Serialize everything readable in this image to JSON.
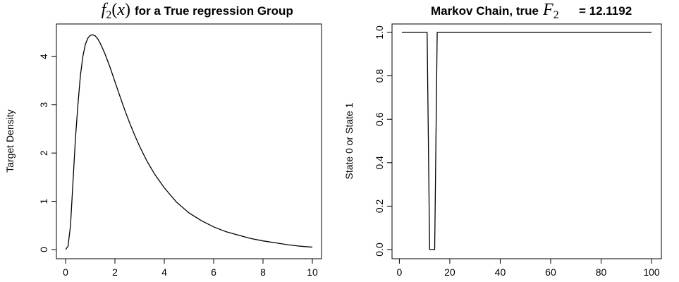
{
  "chart_data": [
    {
      "type": "line",
      "title": {
        "math_base": "f",
        "math_sub": "2",
        "math_arg": "x",
        "text": "for a True regression Group"
      },
      "xlabel": "",
      "ylabel": "Target Density",
      "xlim": [
        0,
        10
      ],
      "ylim": [
        0,
        4.5
      ],
      "xticks": [
        0,
        2,
        4,
        6,
        8,
        10
      ],
      "yticks": [
        0,
        1,
        2,
        3,
        4
      ],
      "series": [
        {
          "x": [
            0,
            0.1,
            0.2,
            0.3,
            0.4,
            0.5,
            0.6,
            0.7,
            0.8,
            0.9,
            1.0,
            1.1,
            1.2,
            1.3,
            1.4,
            1.5,
            1.6,
            1.8,
            2.0,
            2.2,
            2.4,
            2.6,
            2.8,
            3.0,
            3.3,
            3.6,
            4.0,
            4.5,
            5.0,
            5.5,
            6.0,
            6.5,
            7.0,
            7.5,
            8.0,
            8.5,
            9.0,
            9.5,
            10.0
          ],
          "values": [
            0.0,
            0.07,
            0.5,
            1.4,
            2.3,
            3.0,
            3.6,
            4.0,
            4.25,
            4.38,
            4.44,
            4.45,
            4.43,
            4.37,
            4.28,
            4.17,
            4.05,
            3.78,
            3.48,
            3.18,
            2.89,
            2.62,
            2.37,
            2.14,
            1.83,
            1.57,
            1.28,
            0.98,
            0.76,
            0.6,
            0.47,
            0.37,
            0.3,
            0.23,
            0.18,
            0.14,
            0.1,
            0.07,
            0.05
          ]
        }
      ]
    },
    {
      "type": "line",
      "title": {
        "prefix": "Markov Chain, true",
        "math_base": "F",
        "math_sub": "2",
        "suffix": "= 12.1192"
      },
      "xlabel": "",
      "ylabel": "State 0 or State 1",
      "xlim": [
        1,
        100
      ],
      "ylim": [
        0,
        1
      ],
      "xticks": [
        0,
        20,
        40,
        60,
        80,
        100
      ],
      "yticks": [
        "0.0",
        "0.2",
        "0.4",
        "0.6",
        "0.8",
        "1.0"
      ],
      "series": [
        {
          "x": [
            1,
            2,
            3,
            4,
            5,
            6,
            7,
            8,
            9,
            10,
            11,
            12,
            13,
            14,
            15,
            16,
            17,
            18,
            19,
            20,
            21,
            22,
            23,
            24,
            25,
            26,
            27,
            28,
            29,
            30,
            31,
            32,
            33,
            34,
            35,
            36,
            37,
            38,
            39,
            40,
            41,
            42,
            43,
            44,
            45,
            46,
            47,
            48,
            49,
            50,
            51,
            52,
            53,
            54,
            55,
            56,
            57,
            58,
            59,
            60,
            61,
            62,
            63,
            64,
            65,
            66,
            67,
            68,
            69,
            70,
            71,
            72,
            73,
            74,
            75,
            76,
            77,
            78,
            79,
            80,
            81,
            82,
            83,
            84,
            85,
            86,
            87,
            88,
            89,
            90,
            91,
            92,
            93,
            94,
            95,
            96,
            97,
            98,
            99,
            100
          ],
          "values": [
            1,
            1,
            1,
            1,
            1,
            1,
            1,
            1,
            1,
            1,
            1,
            0,
            0,
            0,
            1,
            1,
            1,
            1,
            1,
            1,
            1,
            1,
            1,
            1,
            1,
            1,
            1,
            1,
            1,
            1,
            1,
            1,
            1,
            1,
            1,
            1,
            1,
            1,
            1,
            1,
            1,
            1,
            1,
            1,
            1,
            1,
            1,
            1,
            1,
            1,
            1,
            1,
            1,
            1,
            1,
            1,
            1,
            1,
            1,
            1,
            1,
            1,
            1,
            1,
            1,
            1,
            1,
            1,
            1,
            1,
            1,
            1,
            1,
            1,
            1,
            1,
            1,
            1,
            1,
            1,
            1,
            1,
            1,
            1,
            1,
            1,
            1,
            1,
            1,
            1,
            1,
            1,
            1,
            1,
            1,
            1,
            1,
            1,
            1,
            1
          ]
        }
      ]
    }
  ]
}
